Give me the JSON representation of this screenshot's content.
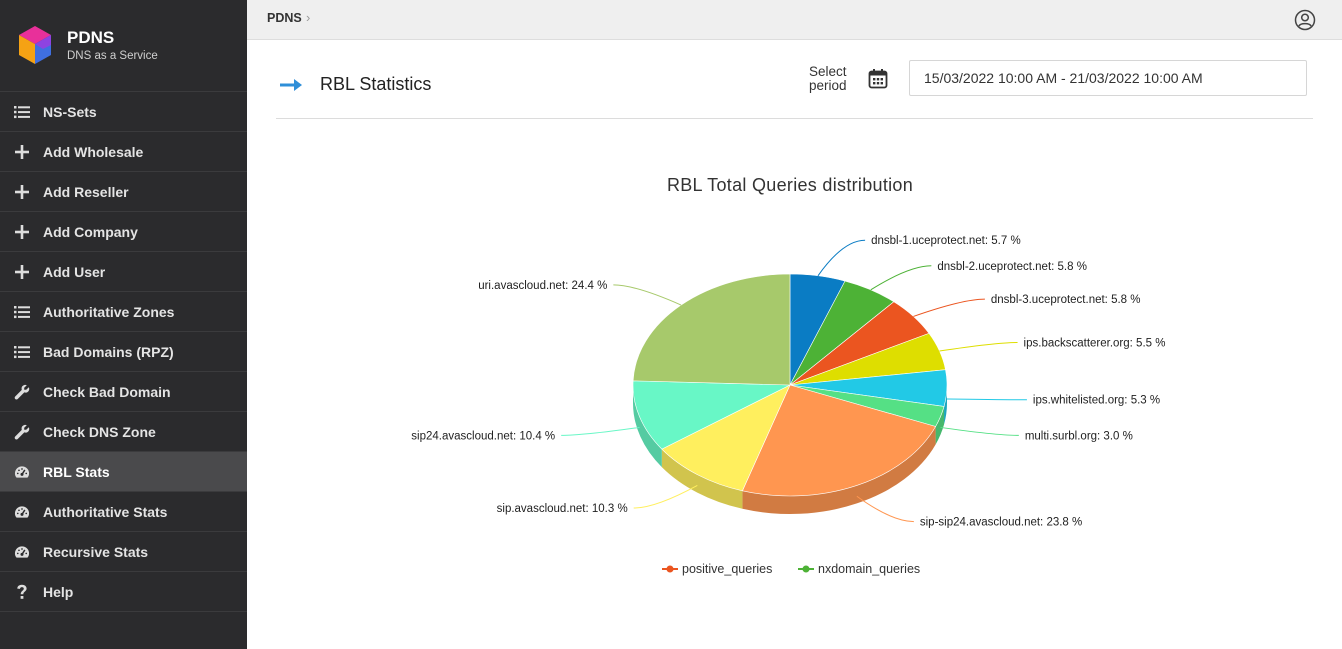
{
  "brand": {
    "name": "PDNS",
    "tagline": "DNS as a Service"
  },
  "sidebar": {
    "items": [
      {
        "label": "NS-Sets",
        "icon": "list-icon"
      },
      {
        "label": "Add Wholesale",
        "icon": "plus-icon"
      },
      {
        "label": "Add Reseller",
        "icon": "plus-icon"
      },
      {
        "label": "Add Company",
        "icon": "plus-icon"
      },
      {
        "label": "Add User",
        "icon": "plus-icon"
      },
      {
        "label": "Authoritative Zones",
        "icon": "list-icon"
      },
      {
        "label": "Bad Domains (RPZ)",
        "icon": "list-icon"
      },
      {
        "label": "Check Bad Domain",
        "icon": "wrench-icon"
      },
      {
        "label": "Check DNS Zone",
        "icon": "wrench-icon"
      },
      {
        "label": "RBL Stats",
        "icon": "gauge-icon",
        "active": true
      },
      {
        "label": "Authoritative Stats",
        "icon": "gauge-icon"
      },
      {
        "label": "Recursive Stats",
        "icon": "gauge-icon"
      },
      {
        "label": "Help",
        "icon": "question-icon"
      }
    ]
  },
  "topbar": {
    "breadcrumb": "PDNS",
    "separator": "›"
  },
  "header": {
    "title": "RBL Statistics",
    "period_label_1": "Select",
    "period_label_2": "period",
    "date_range": "15/03/2022 10:00 AM - 21/03/2022 10:00 AM"
  },
  "colors": {
    "sidebar_bg": "#2b2b2d",
    "accent": "#2f8fd8"
  },
  "chart_data": {
    "type": "pie",
    "title": "RBL Total Queries distribution",
    "slices": [
      {
        "label": "dnsbl-1.uceprotect.net: 5.7 %",
        "name": "dnsbl-1.uceprotect.net",
        "value": 5.7,
        "color": "#0a7cc4"
      },
      {
        "label": "dnsbl-2.uceprotect.net: 5.8 %",
        "name": "dnsbl-2.uceprotect.net",
        "value": 5.8,
        "color": "#4db236"
      },
      {
        "label": "dnsbl-3.uceprotect.net: 5.8 %",
        "name": "dnsbl-3.uceprotect.net",
        "value": 5.8,
        "color": "#eb5520"
      },
      {
        "label": "ips.backscatterer.org: 5.5 %",
        "name": "ips.backscatterer.org",
        "value": 5.5,
        "color": "#dede00"
      },
      {
        "label": "ips.whitelisted.org: 5.3 %",
        "name": "ips.whitelisted.org",
        "value": 5.3,
        "color": "#22c9e6"
      },
      {
        "label": "multi.surbl.org: 3.0 %",
        "name": "multi.surbl.org",
        "value": 3.0,
        "color": "#55e085"
      },
      {
        "label": "sip-sip24.avascloud.net: 23.8 %",
        "name": "sip-sip24.avascloud.net",
        "value": 23.8,
        "color": "#ff9650"
      },
      {
        "label": "sip.avascloud.net: 10.3 %",
        "name": "sip.avascloud.net",
        "value": 10.3,
        "color": "#ffef5e"
      },
      {
        "label": "sip24.avascloud.net: 10.4 %",
        "name": "sip24.avascloud.net",
        "value": 10.4,
        "color": "#68f7c6"
      },
      {
        "label": "uri.avascloud.net: 24.4 %",
        "name": "uri.avascloud.net",
        "value": 24.4,
        "color": "#a7c96b"
      }
    ],
    "legend": [
      {
        "label": "positive_queries",
        "color": "#eb5520"
      },
      {
        "label": "nxdomain_queries",
        "color": "#4db236"
      }
    ],
    "legend_position": "bottom-center"
  }
}
